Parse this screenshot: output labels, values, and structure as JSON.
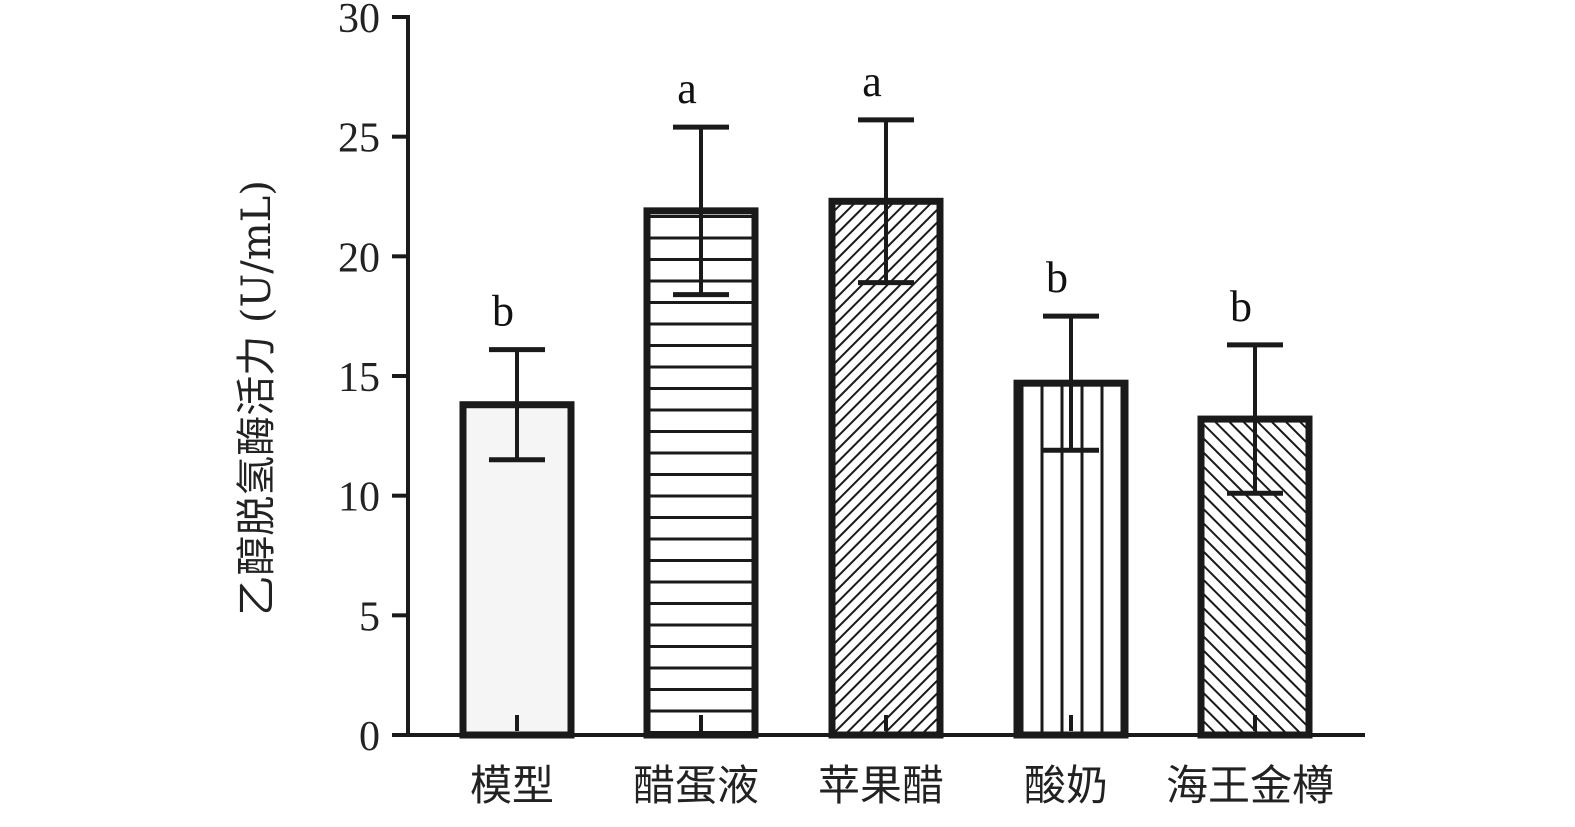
{
  "chart_data": {
    "type": "bar",
    "title": "",
    "xlabel": "",
    "ylabel": "乙醇脱氢酶活力 (U/mL)",
    "ylim": [
      0,
      30
    ],
    "yticks": [
      0,
      5,
      10,
      15,
      20,
      25,
      30
    ],
    "grid": false,
    "categories": [
      "模型",
      "醋蛋液",
      "苹果醋",
      "酸奶",
      "海王金樽"
    ],
    "values": [
      13.8,
      21.9,
      22.3,
      14.7,
      13.2
    ],
    "errors": [
      2.3,
      3.5,
      3.4,
      2.8,
      3.1
    ],
    "significance": [
      "b",
      "a",
      "a",
      "b",
      "b"
    ],
    "patterns": [
      "solid-light",
      "horizontal",
      "diagonal-fine",
      "vertical",
      "diagonal-coarse"
    ]
  }
}
